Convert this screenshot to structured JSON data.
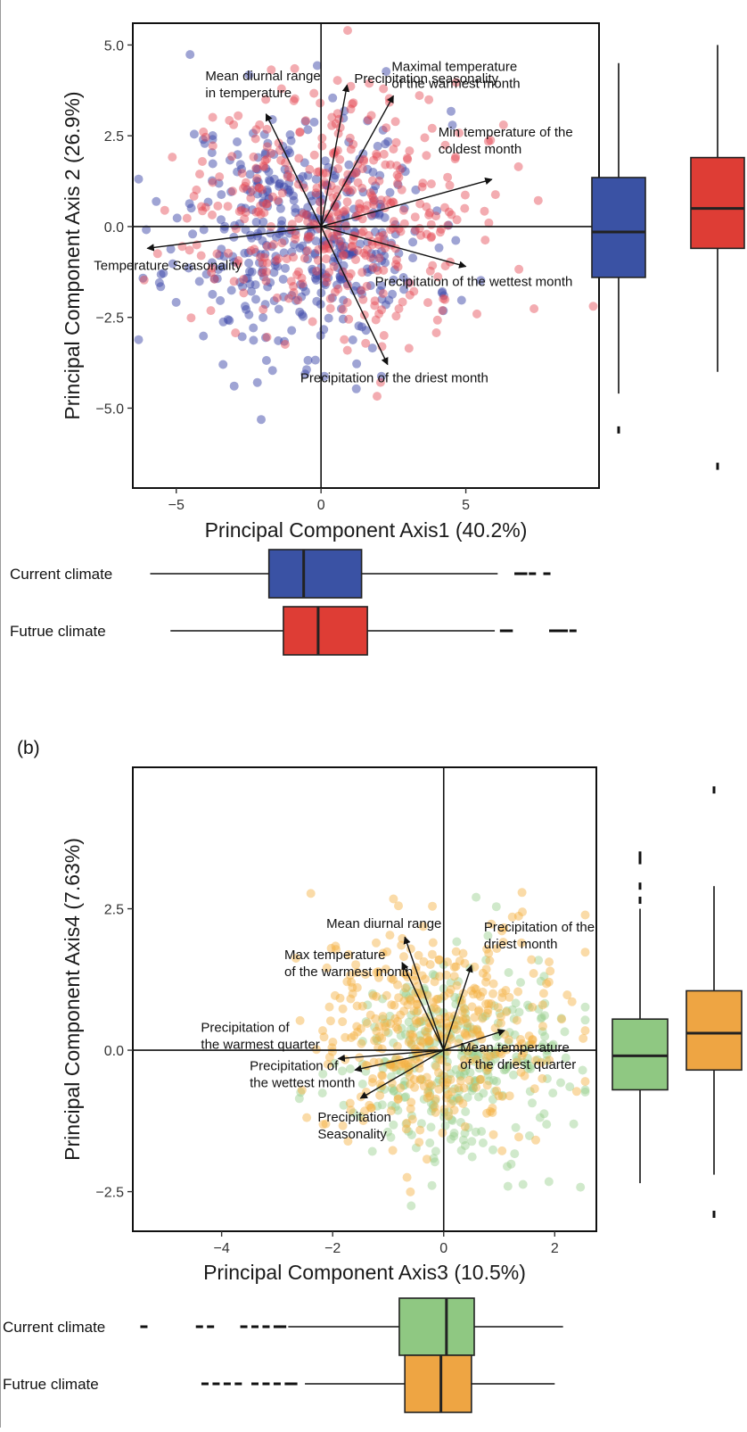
{
  "figure": {
    "panel_b_label": "(b)"
  },
  "colors": {
    "blue": "#3a52a4",
    "red": "#de3d35",
    "green": "#8fc882",
    "orange": "#eea543",
    "point_blue": "rgba(63, 73, 170, 0.50)",
    "point_red": "rgba(228, 72, 82, 0.45)",
    "point_green": "rgba(150, 206, 140, 0.45)",
    "point_orange": "rgba(244, 176, 62, 0.45)"
  },
  "chart_data": [
    {
      "type": "scatter",
      "title": "",
      "xlabel": "Principal Component Axis1 (40.2%)",
      "ylabel": "Principal Component Axis 2 (26.9%)",
      "xlim": [
        -6.5,
        9.6
      ],
      "ylim": [
        -7.2,
        5.6
      ],
      "xticks": [
        -5,
        0,
        5
      ],
      "yticks": [
        -5.0,
        -2.5,
        0.0,
        2.5,
        5.0
      ],
      "xtick_labels": [
        "−5",
        "0",
        "5"
      ],
      "ytick_labels": [
        "−5.0",
        "−2.5",
        "0.0",
        "2.5",
        "5.0"
      ],
      "grid": false,
      "series": [
        {
          "name": "Current climate",
          "color": "point_blue",
          "center": [
            -0.6,
            -0.2
          ],
          "spread": [
            2.2,
            1.7
          ]
        },
        {
          "name": "Futrue climate",
          "color": "point_red",
          "center": [
            0.4,
            0.5
          ],
          "spread": [
            2.3,
            1.7
          ]
        }
      ],
      "loadings": [
        {
          "label": "Precipitation seasonality",
          "x": 0.9,
          "y": 3.9
        },
        {
          "label": "Maximal temperature\nof the warmest month",
          "x": 2.5,
          "y": 3.6
        },
        {
          "label": "Min temperature of the\ncoldest month",
          "x": 5.9,
          "y": 1.3
        },
        {
          "label": "Mean diurnal range\nin temperature",
          "x": -1.9,
          "y": 3.1
        },
        {
          "label": "Temperature Seasonality",
          "x": -6.0,
          "y": -0.6
        },
        {
          "label": "Precipitation of the wettest month",
          "x": 5.0,
          "y": -1.1
        },
        {
          "label": "Precipitation of the driest month",
          "x": 2.3,
          "y": -3.8
        }
      ],
      "boxplots": {
        "x_axis": [
          {
            "name": "Current climate",
            "min": -5.9,
            "q1": -1.8,
            "median": -0.6,
            "q3": 1.4,
            "max": 6.1,
            "outliers": [
              6.8,
              7.0,
              7.3,
              7.8
            ]
          },
          {
            "name": "Futrue climate",
            "min": -5.2,
            "q1": -1.3,
            "median": -0.1,
            "q3": 1.6,
            "max": 6.0,
            "outliers": [
              6.3,
              6.5,
              8.0,
              8.2,
              8.4,
              8.7
            ]
          }
        ],
        "y_axis": [
          {
            "name": "Current climate",
            "min": -4.6,
            "q1": -1.4,
            "median": -0.15,
            "q3": 1.35,
            "max": 4.5,
            "outliers": [
              -5.6
            ]
          },
          {
            "name": "Futrue climate",
            "min": -4.0,
            "q1": -0.6,
            "median": 0.5,
            "q3": 1.9,
            "max": 5.0,
            "outliers": [
              -6.6
            ]
          }
        ]
      }
    },
    {
      "type": "scatter",
      "title": "",
      "xlabel": "Principal Component Axis3 (10.5%)",
      "ylabel": "Principal Component Axis4 (7.63%)",
      "xlim": [
        -5.6,
        2.75
      ],
      "ylim": [
        -3.2,
        5.0
      ],
      "xticks": [
        -4,
        -2,
        0,
        2
      ],
      "yticks": [
        -2.5,
        0.0,
        2.5
      ],
      "xtick_labels": [
        "−4",
        "−2",
        "0",
        "2"
      ],
      "ytick_labels": [
        "−2.5",
        "0.0",
        "2.5"
      ],
      "grid": false,
      "series": [
        {
          "name": "Current climate",
          "color": "point_green",
          "center": [
            0.1,
            -0.2
          ],
          "spread": [
            1.0,
            0.85
          ]
        },
        {
          "name": "Futrue climate",
          "color": "point_orange",
          "center": [
            -0.1,
            0.35
          ],
          "spread": [
            1.1,
            0.95
          ]
        }
      ],
      "loadings": [
        {
          "label": "Mean diurnal range",
          "x": -0.7,
          "y": 2.0
        },
        {
          "label": "Max temperature\nof the warmest month",
          "x": -0.75,
          "y": 1.55
        },
        {
          "label": "Precipitation of the\ndriest month",
          "x": 0.5,
          "y": 1.5
        },
        {
          "label": "Precipitation of\nthe warmest quarter",
          "x": -1.9,
          "y": -0.15
        },
        {
          "label": "Precipitation of\nthe wettest month",
          "x": -1.6,
          "y": -0.35
        },
        {
          "label": "Precipitation\nSeasonality",
          "x": -1.5,
          "y": -0.85
        },
        {
          "label": "Mean temperature\nof the driest quarter",
          "x": 1.1,
          "y": 0.35
        }
      ],
      "boxplots": {
        "x_axis": [
          {
            "name": "Current climate",
            "min": -2.8,
            "q1": -0.8,
            "median": 0.05,
            "q3": 0.55,
            "max": 2.15,
            "outliers": [
              -5.4,
              -4.4,
              -4.2,
              -3.6,
              -3.4,
              -3.2,
              -3.0,
              -2.9
            ]
          },
          {
            "name": "Futrue climate",
            "min": -2.5,
            "q1": -0.7,
            "median": -0.05,
            "q3": 0.5,
            "max": 2.0,
            "outliers": [
              -4.3,
              -4.1,
              -3.9,
              -3.7,
              -3.4,
              -3.2,
              -3.0,
              -2.8,
              -2.7
            ]
          }
        ],
        "y_axis": [
          {
            "name": "Current climate",
            "min": -2.35,
            "q1": -0.7,
            "median": -0.1,
            "q3": 0.55,
            "max": 2.5,
            "outliers": [
              2.65,
              2.9,
              3.35,
              3.45
            ]
          },
          {
            "name": "Futrue climate",
            "min": -2.2,
            "q1": -0.35,
            "median": 0.3,
            "q3": 1.05,
            "max": 2.9,
            "outliers": [
              4.6,
              -2.9
            ]
          }
        ]
      }
    }
  ]
}
